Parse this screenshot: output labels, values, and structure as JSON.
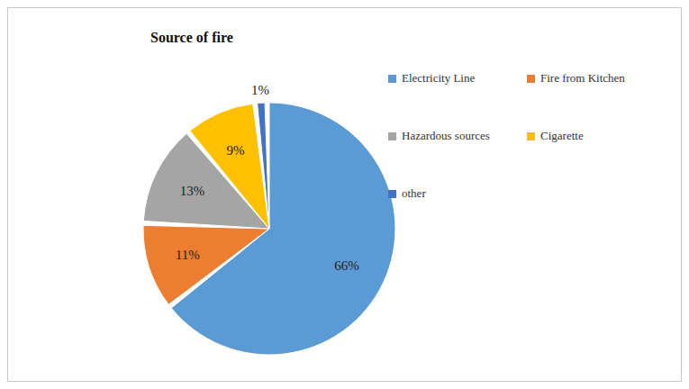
{
  "chart_data": {
    "type": "pie",
    "title": "Source of fire",
    "categories": [
      "Electricity Line",
      "Fire from Kitchen",
      "Hazardous sources",
      "Cigarette",
      "other"
    ],
    "values": [
      66,
      11,
      13,
      9,
      1
    ],
    "value_labels": [
      "66%",
      "11%",
      "13%",
      "9%",
      "1%"
    ],
    "colors": [
      "#5b9bd5",
      "#ed7d31",
      "#a5a5a5",
      "#ffc000",
      "#4472c4"
    ],
    "data_labels": true,
    "legend": "right"
  }
}
